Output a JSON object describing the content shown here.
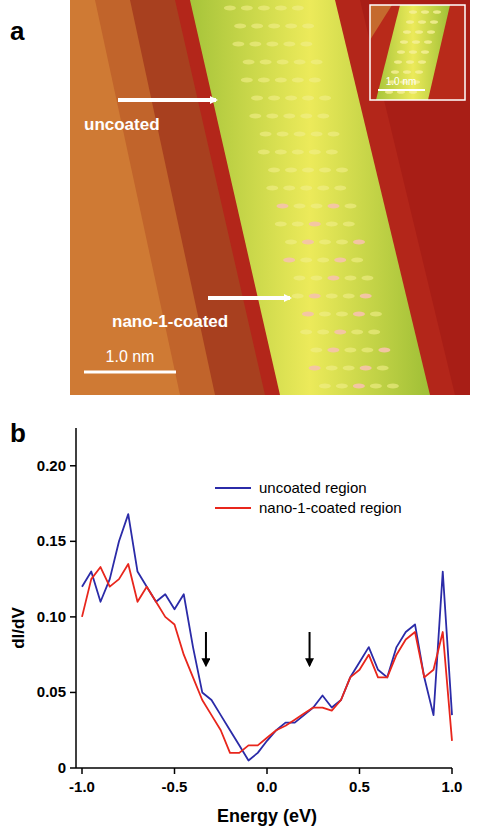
{
  "image": {
    "label": "a",
    "annotations": [
      "uncoated",
      "nano-1-coated"
    ],
    "scale_bar": "1.0 nm",
    "inset_scale_bar": "1.0 nm"
  },
  "panel_b": {
    "label": "b"
  },
  "chart_data": {
    "type": "line",
    "x_label": "Energy (eV)",
    "y_label": "dI/dV",
    "x": [
      -1.0,
      -0.95,
      -0.9,
      -0.85,
      -0.8,
      -0.75,
      -0.7,
      -0.65,
      -0.6,
      -0.55,
      -0.5,
      -0.45,
      -0.4,
      -0.35,
      -0.3,
      -0.25,
      -0.2,
      -0.15,
      -0.1,
      -0.05,
      0.0,
      0.05,
      0.1,
      0.15,
      0.2,
      0.25,
      0.3,
      0.35,
      0.4,
      0.45,
      0.5,
      0.55,
      0.6,
      0.65,
      0.7,
      0.75,
      0.8,
      0.85,
      0.9,
      0.95,
      1.0
    ],
    "series": [
      {
        "name": "uncoated region",
        "color": "#2b2ba8",
        "values": [
          0.12,
          0.13,
          0.11,
          0.125,
          0.15,
          0.168,
          0.13,
          0.12,
          0.11,
          0.115,
          0.105,
          0.115,
          0.08,
          0.05,
          0.045,
          0.035,
          0.025,
          0.015,
          0.005,
          0.01,
          0.018,
          0.025,
          0.03,
          0.03,
          0.035,
          0.04,
          0.048,
          0.04,
          0.045,
          0.06,
          0.07,
          0.08,
          0.065,
          0.06,
          0.08,
          0.09,
          0.095,
          0.06,
          0.035,
          0.13,
          0.035
        ]
      },
      {
        "name": "nano-1-coated region",
        "color": "#e8261c",
        "values": [
          0.1,
          0.125,
          0.133,
          0.12,
          0.125,
          0.135,
          0.11,
          0.12,
          0.11,
          0.1,
          0.095,
          0.075,
          0.06,
          0.045,
          0.035,
          0.025,
          0.01,
          0.01,
          0.015,
          0.015,
          0.02,
          0.025,
          0.028,
          0.032,
          0.036,
          0.04,
          0.04,
          0.038,
          0.045,
          0.06,
          0.065,
          0.075,
          0.06,
          0.06,
          0.075,
          0.085,
          0.09,
          0.06,
          0.065,
          0.09,
          0.018
        ]
      }
    ],
    "annotations": [
      {
        "x": -0.33,
        "y": [
          0.09,
          0.068
        ]
      },
      {
        "x": 0.23,
        "y": [
          0.09,
          0.068
        ]
      }
    ],
    "xlim": [
      -1.0,
      1.0
    ],
    "ylim": [
      0,
      0.225
    ],
    "xticks": [
      {
        "value": -1.0,
        "label": "-1.0"
      },
      {
        "value": -0.5,
        "label": "-0.5"
      },
      {
        "value": 0,
        "label": "0.0"
      },
      {
        "value": 0.5,
        "label": "0.5"
      },
      {
        "value": 1.0,
        "label": "1.0"
      }
    ],
    "yticks": [
      0,
      0.05,
      {
        "value": 0.1,
        "label": "0.10"
      },
      0.15,
      {
        "value": 0.2,
        "label": "0.20"
      }
    ],
    "grid": false,
    "legend": "upper right"
  }
}
